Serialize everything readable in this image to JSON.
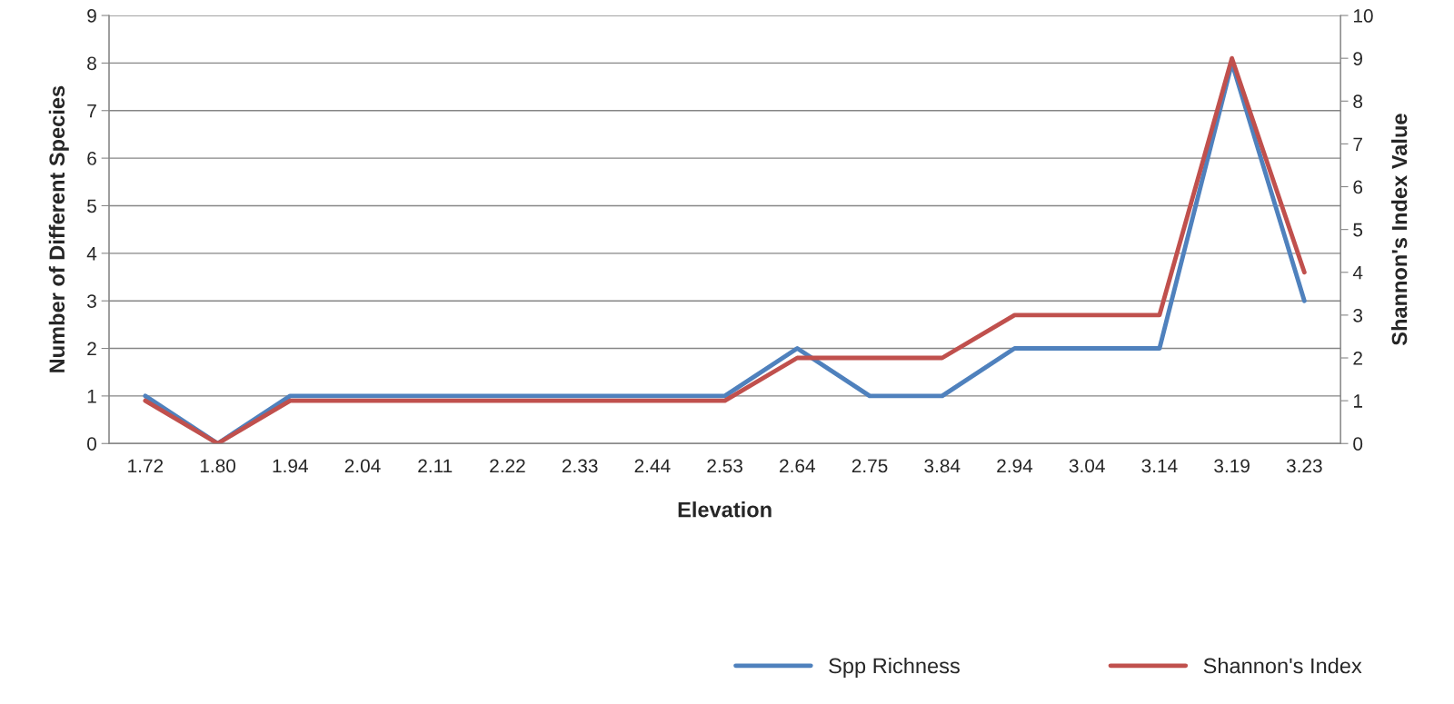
{
  "chart_data": {
    "type": "line",
    "xlabel": "Elevation",
    "ylabel": "Number of Different Species",
    "y2label": "Shannon's Index Value",
    "categories": [
      "1.72",
      "1.80",
      "1.94",
      "2.04",
      "2.11",
      "2.22",
      "2.33",
      "2.44",
      "2.53",
      "2.64",
      "2.75",
      "3.84",
      "2.94",
      "3.04",
      "3.14",
      "3.19",
      "3.23"
    ],
    "series": [
      {
        "name": "Spp Richness",
        "color": "#4f81bd",
        "values": [
          1,
          0,
          1,
          1,
          1,
          1,
          1,
          1,
          1,
          2,
          1,
          1,
          2,
          2,
          2,
          8,
          3
        ]
      },
      {
        "name": "Shannon's Index",
        "color": "#c0504d",
        "axis": "y2",
        "values": [
          1,
          0,
          1,
          1,
          1,
          1,
          1,
          1,
          1,
          2,
          2,
          2,
          3,
          3,
          3,
          9,
          4
        ]
      }
    ],
    "ylim": [
      0,
      9
    ],
    "yticks": [
      0,
      1,
      2,
      3,
      4,
      5,
      6,
      7,
      8,
      9
    ],
    "y2lim": [
      0,
      10
    ],
    "y2ticks": [
      0,
      1,
      2,
      3,
      4,
      5,
      6,
      7,
      8,
      9,
      10
    ],
    "grid": "y",
    "legend": "bottom right",
    "marker": "none",
    "line_style": "solid"
  }
}
